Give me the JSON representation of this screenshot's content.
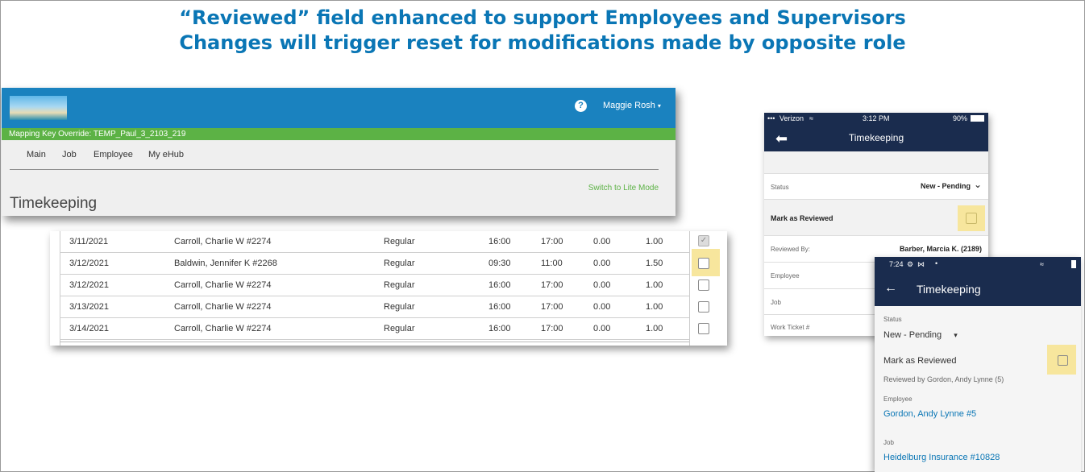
{
  "headline": {
    "line1": "“Reviewed” field enhanced to support Employees and Supervisors",
    "line2": "Changes will trigger reset for modifications made by opposite role"
  },
  "desktop": {
    "user_name": "Maggie Rosh",
    "help_glyph": "?",
    "mapping_key": "Mapping Key Override: TEMP_Paul_3_2103_219",
    "nav": [
      "Main",
      "Job",
      "Employee",
      "My eHub"
    ],
    "lite_mode": "Switch to Lite Mode",
    "page_title": "Timekeeping"
  },
  "table": {
    "rows": [
      {
        "date": "3/11/2021",
        "employee": "Carroll, Charlie W #2274",
        "type": "Regular",
        "start": "16:00",
        "end": "17:00",
        "a": "0.00",
        "b": "1.00",
        "reviewed": true
      },
      {
        "date": "3/12/2021",
        "employee": "Baldwin, Jennifer K #2268",
        "type": "Regular",
        "start": "09:30",
        "end": "11:00",
        "a": "0.00",
        "b": "1.50",
        "reviewed": false
      },
      {
        "date": "3/12/2021",
        "employee": "Carroll, Charlie W #2274",
        "type": "Regular",
        "start": "16:00",
        "end": "17:00",
        "a": "0.00",
        "b": "1.00",
        "reviewed": false
      },
      {
        "date": "3/13/2021",
        "employee": "Carroll, Charlie W #2274",
        "type": "Regular",
        "start": "16:00",
        "end": "17:00",
        "a": "0.00",
        "b": "1.00",
        "reviewed": false
      },
      {
        "date": "3/14/2021",
        "employee": "Carroll, Charlie W #2274",
        "type": "Regular",
        "start": "16:00",
        "end": "17:00",
        "a": "0.00",
        "b": "1.00",
        "reviewed": false
      }
    ]
  },
  "iphone": {
    "carrier": "Verizon",
    "time": "3:12 PM",
    "battery": "90%",
    "title": "Timekeeping",
    "status_label": "Status",
    "status_value": "New - Pending",
    "mark_reviewed": "Mark as Reviewed",
    "reviewed_by_label": "Reviewed By:",
    "reviewed_by_value": "Barber, Marcia K.  (2189)",
    "employee_label": "Employee",
    "job_label": "Job",
    "work_ticket_label": "Work Ticket #"
  },
  "android": {
    "time": "7:24",
    "title": "Timekeeping",
    "status_label": "Status",
    "status_value": "New - Pending",
    "mark_reviewed": "Mark as Reviewed",
    "reviewed_by": "Reviewed by Gordon, Andy Lynne  (5)",
    "employee_label": "Employee",
    "employee_value": "Gordon, Andy Lynne  #5",
    "job_label": "Job",
    "job_value": "Heidelburg Insurance #10828"
  },
  "colors": {
    "headline": "#0a76b5",
    "desktop_header": "#1a82bf",
    "green_bar": "#5cb245",
    "mobile_header": "#1a2c4e",
    "highlight": "#f7e69d"
  }
}
